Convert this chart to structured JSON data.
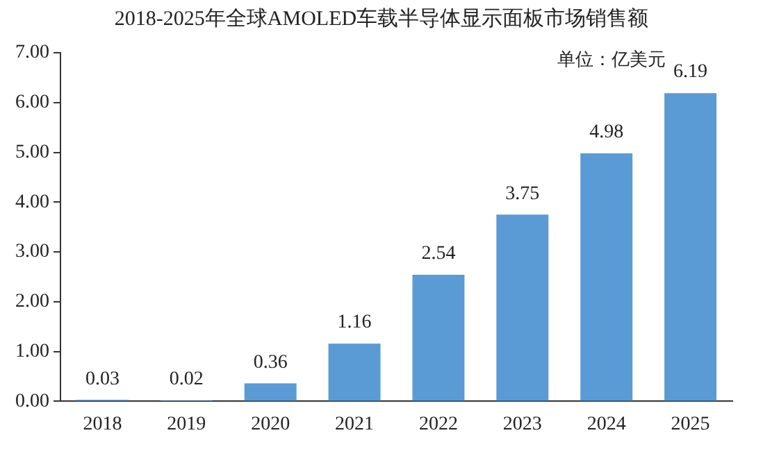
{
  "chart_data": {
    "type": "bar",
    "title": "2018-2025年全球AMOLED车载半导体显示面板市场销售额",
    "annotations": [
      "单位：亿美元"
    ],
    "categories": [
      "2018",
      "2019",
      "2020",
      "2021",
      "2022",
      "2023",
      "2024",
      "2025"
    ],
    "values": [
      0.03,
      0.02,
      0.36,
      1.16,
      2.54,
      3.75,
      4.98,
      6.19
    ],
    "color": "#5b9bd5",
    "ylim": [
      0,
      7
    ],
    "yticks": [
      {
        "value": 0,
        "label": "0.00"
      },
      {
        "value": 1,
        "label": "1.00"
      },
      {
        "value": 2,
        "label": "2.00"
      },
      {
        "value": 3,
        "label": "3.00"
      },
      {
        "value": 4,
        "label": "4.00"
      },
      {
        "value": 5,
        "label": "5.00"
      },
      {
        "value": 6,
        "label": "6.00"
      },
      {
        "value": 7,
        "label": "7.00"
      }
    ],
    "grid": false,
    "data_labels": true
  }
}
